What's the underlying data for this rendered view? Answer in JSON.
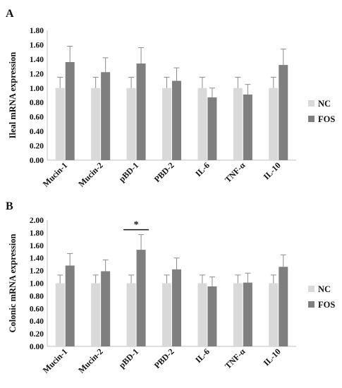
{
  "chart_data": [
    {
      "panel": "A",
      "type": "bar",
      "ylabel": "Ileal mRNA expression",
      "xlabel": "",
      "ylim": [
        0,
        1.8
      ],
      "yticks": [
        "0.00",
        "0.20",
        "0.40",
        "0.60",
        "0.80",
        "1.00",
        "1.20",
        "1.40",
        "1.60",
        "1.80"
      ],
      "categories": [
        "Mucin-1",
        "Mucin-2",
        "pBD-1",
        "PBD-2",
        "IL-6",
        "TNF-α",
        "IL-10"
      ],
      "series": [
        {
          "name": "NC",
          "color": "#d9d9d9",
          "values": [
            1.0,
            1.0,
            1.0,
            1.0,
            1.0,
            1.0,
            1.0
          ],
          "errors": [
            0.15,
            0.15,
            0.15,
            0.15,
            0.15,
            0.15,
            0.15
          ]
        },
        {
          "name": "FOS",
          "color": "#7f7f7f",
          "values": [
            1.36,
            1.22,
            1.34,
            1.1,
            0.87,
            0.91,
            1.32
          ],
          "errors": [
            0.22,
            0.2,
            0.22,
            0.18,
            0.13,
            0.14,
            0.22
          ]
        }
      ],
      "significance": [],
      "legend_position": "right"
    },
    {
      "panel": "B",
      "type": "bar",
      "ylabel": "Colonic mRNA expression",
      "xlabel": "",
      "ylim": [
        0,
        2.0
      ],
      "yticks": [
        "0.00",
        "0.20",
        "0.40",
        "0.60",
        "0.80",
        "1.00",
        "1.20",
        "1.40",
        "1.60",
        "1.80",
        "2.00"
      ],
      "categories": [
        "Mucin-1",
        "Mucin-2",
        "pBD-1",
        "PBD-2",
        "IL-6",
        "TNF-α",
        "IL-10"
      ],
      "series": [
        {
          "name": "NC",
          "color": "#d9d9d9",
          "values": [
            1.0,
            1.0,
            1.0,
            1.0,
            1.0,
            1.0,
            1.0
          ],
          "errors": [
            0.13,
            0.13,
            0.13,
            0.13,
            0.13,
            0.13,
            0.13
          ]
        },
        {
          "name": "FOS",
          "color": "#7f7f7f",
          "values": [
            1.28,
            1.19,
            1.53,
            1.22,
            0.95,
            1.01,
            1.26
          ],
          "errors": [
            0.19,
            0.18,
            0.24,
            0.18,
            0.15,
            0.15,
            0.19
          ]
        }
      ],
      "significance": [
        {
          "category_index": 2,
          "label": "*"
        }
      ],
      "legend_position": "right"
    }
  ]
}
